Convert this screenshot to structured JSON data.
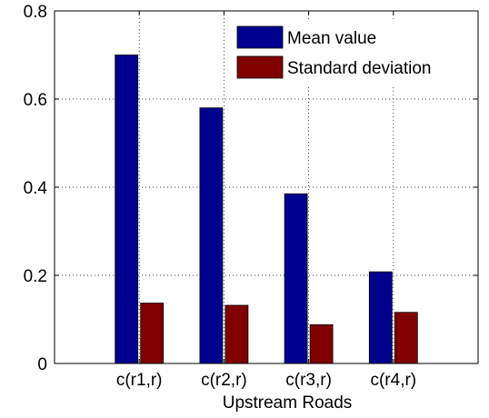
{
  "chart_data": {
    "type": "bar",
    "categories": [
      "c(r1,r)",
      "c(r2,r)",
      "c(r3,r)",
      "c(r4,r)"
    ],
    "series": [
      {
        "name": "Mean value",
        "values": [
          0.7,
          0.58,
          0.385,
          0.208
        ],
        "color": "#00008f"
      },
      {
        "name": "Standard deviation",
        "values": [
          0.137,
          0.132,
          0.088,
          0.116
        ],
        "color": "#800000"
      }
    ],
    "title": "",
    "xlabel": "Upstream Roads",
    "ylabel": "",
    "ylim": [
      0,
      0.8
    ],
    "yticks": [
      "0",
      "0.2",
      "0.4",
      "0.6",
      "0.8"
    ],
    "grid": true,
    "legend_position": "top-right"
  }
}
